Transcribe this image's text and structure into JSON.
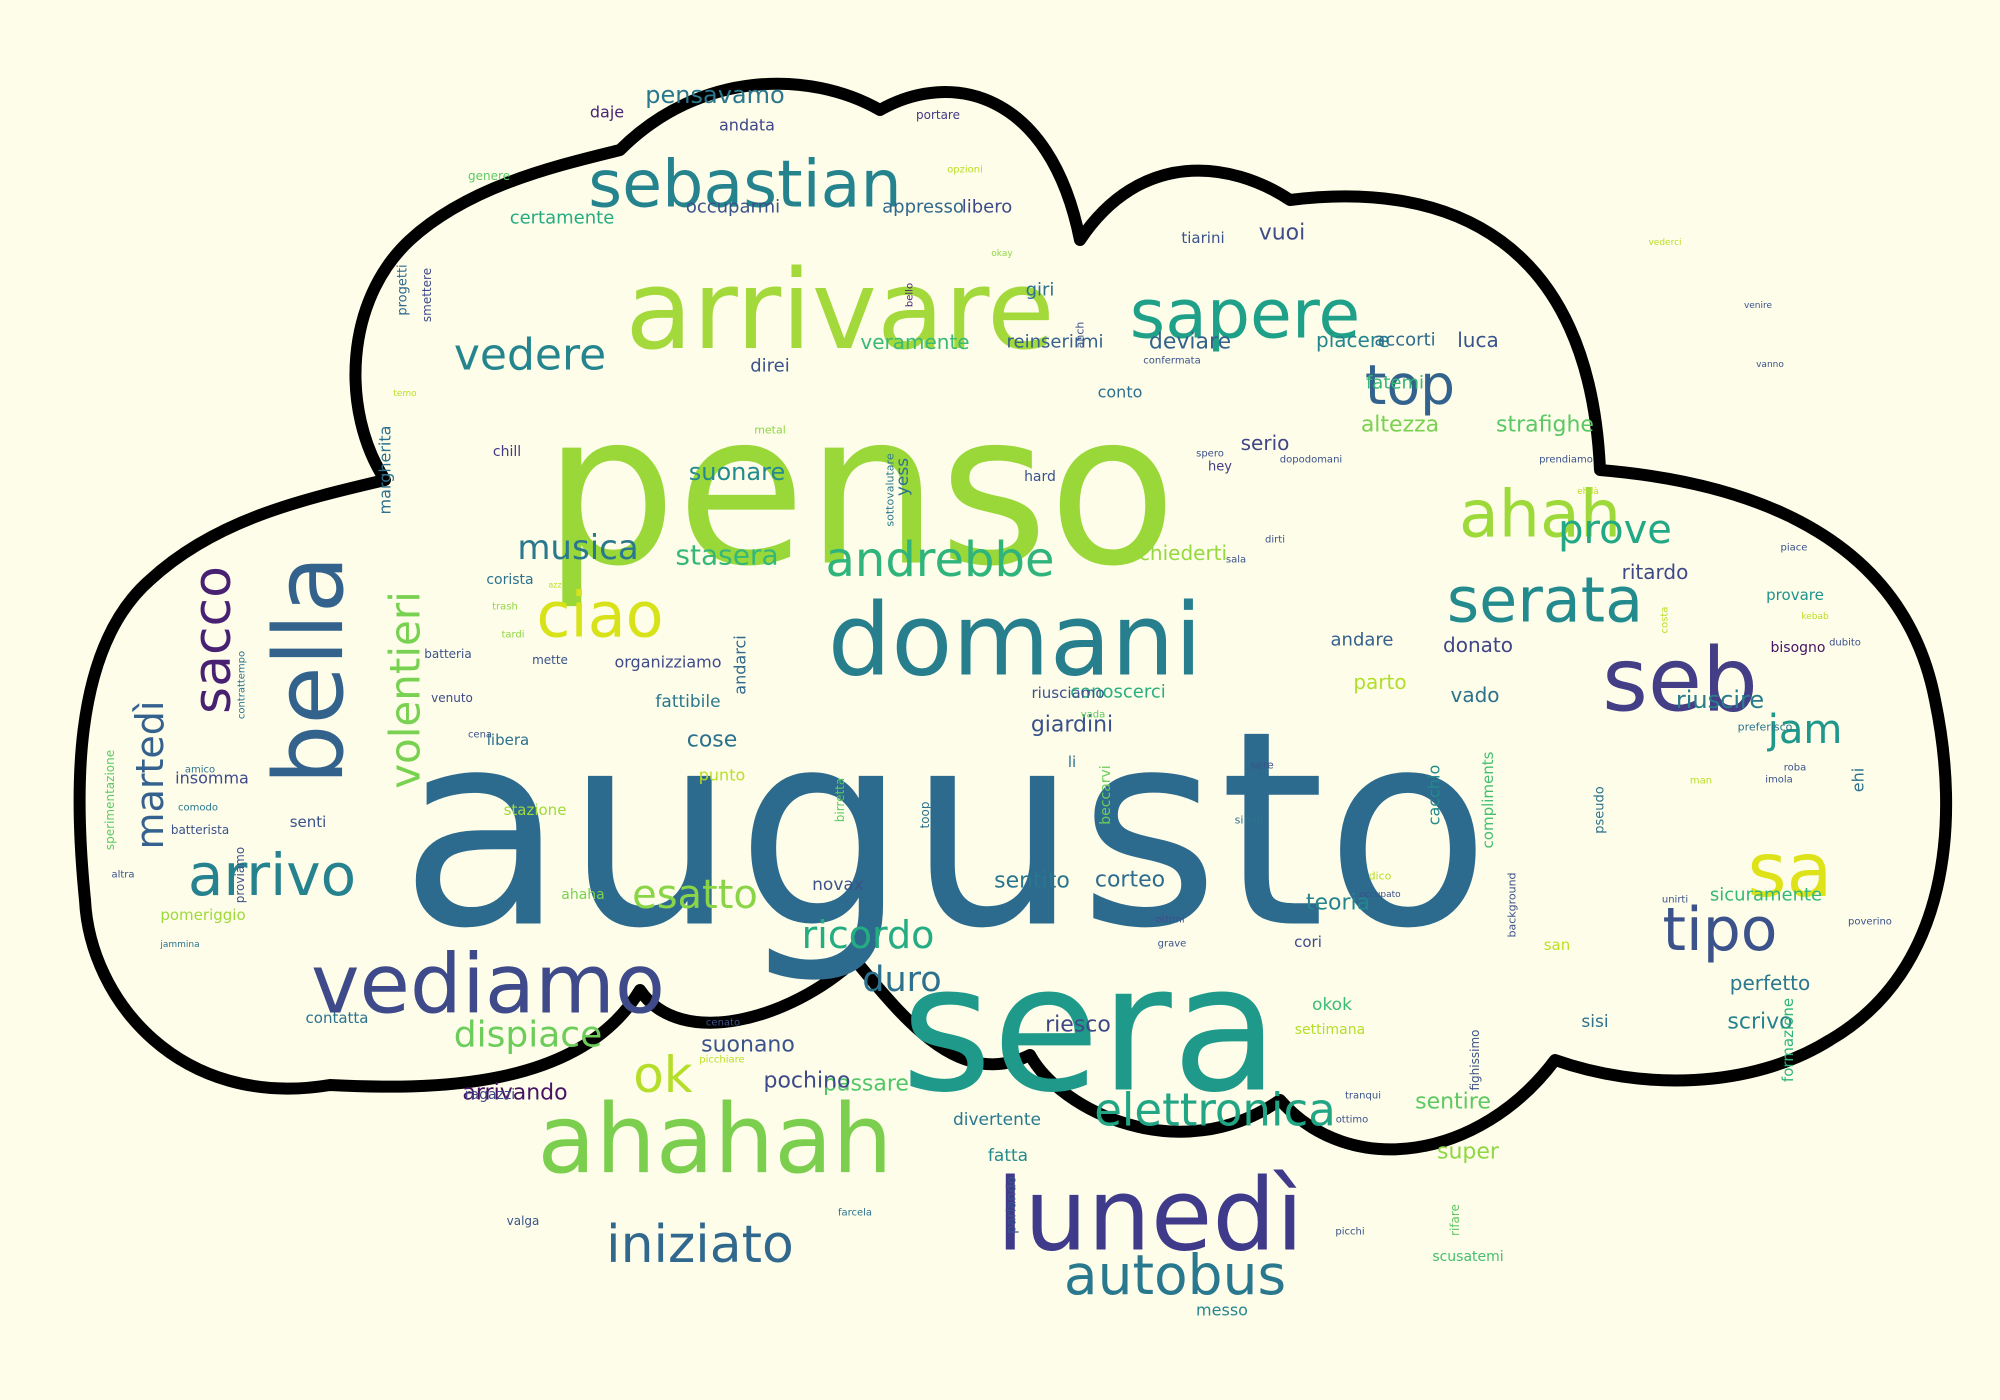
{
  "palette": {
    "background": "#fdfde9",
    "cloud_fill": "#fdfde9",
    "cloud_stroke": "#000000",
    "viridis": [
      "#440154",
      "#3b528b",
      "#2c728e",
      "#21918c",
      "#28ae80",
      "#5ec962",
      "#addc30",
      "#fde725"
    ]
  },
  "word_cloud": {
    "words": [
      {
        "text": "augusto",
        "color": "#2c6a8e"
      },
      {
        "text": "penso",
        "color": "#9ad83a"
      },
      {
        "text": "sera",
        "color": "#1f9a8a"
      },
      {
        "text": "domani",
        "color": "#277f8e"
      },
      {
        "text": "arrivare",
        "color": "#a3d93a"
      },
      {
        "text": "ahahah",
        "color": "#7ccf4e"
      },
      {
        "text": "lunedì",
        "color": "#3f3a8a"
      },
      {
        "text": "vediamo",
        "color": "#3e4a8a"
      },
      {
        "text": "seb",
        "color": "#433e85"
      },
      {
        "text": "bella",
        "color": "#33628d"
      },
      {
        "text": "sebastian",
        "color": "#25838e"
      },
      {
        "text": "sapere",
        "color": "#1fa088"
      },
      {
        "text": "sa",
        "color": "#dde318"
      },
      {
        "text": "ahah",
        "color": "#9ed93a"
      },
      {
        "text": "serata",
        "color": "#238a8d"
      },
      {
        "text": "ciao",
        "color": "#d8e219"
      },
      {
        "text": "andrebbe",
        "color": "#2fb47c"
      },
      {
        "text": "sacco",
        "color": "#482173"
      },
      {
        "text": "volentieri",
        "color": "#79d151"
      },
      {
        "text": "arrivo",
        "color": "#26828e"
      },
      {
        "text": "tipo",
        "color": "#3b528b"
      },
      {
        "text": "top",
        "color": "#33638d"
      },
      {
        "text": "iniziato",
        "color": "#31688e"
      },
      {
        "text": "autobus",
        "color": "#2a788e"
      },
      {
        "text": "elettronica",
        "color": "#21a585"
      },
      {
        "text": "vedere",
        "color": "#25858e"
      },
      {
        "text": "martedì",
        "color": "#34618d"
      },
      {
        "text": "esatto",
        "color": "#8ad547"
      },
      {
        "text": "prove",
        "color": "#22a884"
      },
      {
        "text": "jam",
        "color": "#1f988b"
      },
      {
        "text": "ok",
        "color": "#b5de2b"
      },
      {
        "text": "dispiace",
        "color": "#6ccd5a"
      },
      {
        "text": "ricordo",
        "color": "#25ac82"
      },
      {
        "text": "musica",
        "color": "#2a788e"
      },
      {
        "text": "duro",
        "color": "#2d718e"
      },
      {
        "text": "stasera",
        "color": "#35b779"
      },
      {
        "text": "pensavamo",
        "color": "#2a778e"
      },
      {
        "text": "riuscire",
        "color": "#287c8e"
      },
      {
        "text": "suonare",
        "color": "#238a8d"
      },
      {
        "text": "altezza",
        "color": "#7ad151"
      },
      {
        "text": "strafighe",
        "color": "#5ac864"
      },
      {
        "text": "deviare",
        "color": "#33638d"
      },
      {
        "text": "serio",
        "color": "#404688"
      },
      {
        "text": "vuoi",
        "color": "#3e4c8a"
      },
      {
        "text": "giardini",
        "color": "#3b518b"
      },
      {
        "text": "passare",
        "color": "#52c569"
      },
      {
        "text": "cose",
        "color": "#2c718e"
      },
      {
        "text": "arrivando",
        "color": "#471365"
      },
      {
        "text": "corteo",
        "color": "#2f6c8e"
      },
      {
        "text": "pochino",
        "color": "#3e4a89"
      },
      {
        "text": "sentito",
        "color": "#2a768e"
      },
      {
        "text": "teoria",
        "color": "#25858e"
      },
      {
        "text": "riesco",
        "color": "#3f4889"
      },
      {
        "text": "suonano",
        "color": "#3b528b"
      },
      {
        "text": "sentire",
        "color": "#5ec962"
      },
      {
        "text": "super",
        "color": "#8fd744"
      },
      {
        "text": "scrivo",
        "color": "#26828e"
      },
      {
        "text": "perfetto",
        "color": "#2a778e"
      },
      {
        "text": "sicuramente",
        "color": "#35b779"
      },
      {
        "text": "donato",
        "color": "#404588"
      },
      {
        "text": "parto",
        "color": "#b2dd2d"
      },
      {
        "text": "vado",
        "color": "#2c728e"
      },
      {
        "text": "andare",
        "color": "#34618d"
      },
      {
        "text": "ritardo",
        "color": "#3e4989"
      },
      {
        "text": "chiederti",
        "color": "#95d840"
      },
      {
        "text": "luca",
        "color": "#3a538b"
      },
      {
        "text": "piacere",
        "color": "#25858e"
      },
      {
        "text": "accorti",
        "color": "#2f6b8e"
      },
      {
        "text": "fatemi",
        "color": "#35b779"
      },
      {
        "text": "reinserirmi",
        "color": "#34618d"
      },
      {
        "text": "veramente",
        "color": "#3aba76"
      },
      {
        "text": "direi",
        "color": "#3b528b"
      },
      {
        "text": "giri",
        "color": "#2c728e"
      },
      {
        "text": "conto",
        "color": "#2e6f8e"
      },
      {
        "text": "certamente",
        "color": "#25ab82"
      },
      {
        "text": "occuparmi",
        "color": "#3b528b"
      },
      {
        "text": "appresso",
        "color": "#31688e"
      },
      {
        "text": "libero",
        "color": "#3e4a89"
      },
      {
        "text": "andata",
        "color": "#404688"
      },
      {
        "text": "daje",
        "color": "#482576"
      },
      {
        "text": "portare",
        "color": "#443a83"
      },
      {
        "text": "tiarini",
        "color": "#3b528b"
      },
      {
        "text": "conoscerci",
        "color": "#28ae80"
      },
      {
        "text": "fattibile",
        "color": "#2a788e"
      },
      {
        "text": "organizziamo",
        "color": "#3e4a89"
      },
      {
        "text": "insomma",
        "color": "#3e4a89"
      },
      {
        "text": "senti",
        "color": "#3b528b"
      },
      {
        "text": "punto",
        "color": "#bade28"
      },
      {
        "text": "stazione",
        "color": "#9fda3a"
      },
      {
        "text": "libera",
        "color": "#2d708e"
      },
      {
        "text": "novax",
        "color": "#3b528b"
      },
      {
        "text": "ahaha",
        "color": "#7ad151"
      },
      {
        "text": "ragazzi",
        "color": "#3e4989"
      },
      {
        "text": "divertente",
        "color": "#2a788e"
      },
      {
        "text": "fatta",
        "color": "#238a8d"
      },
      {
        "text": "okok",
        "color": "#3dbc74"
      },
      {
        "text": "settimana",
        "color": "#b5de2b"
      },
      {
        "text": "sisi",
        "color": "#2d718e"
      },
      {
        "text": "san",
        "color": "#bddf26"
      },
      {
        "text": "cori",
        "color": "#3e4a89"
      },
      {
        "text": "riusciamo",
        "color": "#3b528b"
      },
      {
        "text": "chill",
        "color": "#443983"
      },
      {
        "text": "hard",
        "color": "#3b528b"
      },
      {
        "text": "hey",
        "color": "#443a83"
      },
      {
        "text": "margherita",
        "color": "#2c728e"
      },
      {
        "text": "batteria",
        "color": "#3b528b"
      },
      {
        "text": "venuto",
        "color": "#3e4a89"
      },
      {
        "text": "contatta",
        "color": "#2c728e"
      },
      {
        "text": "pomeriggio",
        "color": "#9ed93a"
      },
      {
        "text": "provare",
        "color": "#20928c"
      },
      {
        "text": "bisogno",
        "color": "#471365"
      },
      {
        "text": "ehi",
        "color": "#2c728e"
      },
      {
        "text": "messo",
        "color": "#25858e"
      },
      {
        "text": "scusatemi",
        "color": "#44bf70"
      },
      {
        "text": "formazione",
        "color": "#2fb47c"
      },
      {
        "text": "compliments",
        "color": "#44bf70"
      },
      {
        "text": "cacchio",
        "color": "#238a8d"
      },
      {
        "text": "sottovalutare",
        "color": "#2a788e"
      },
      {
        "text": "yess",
        "color": "#2c728e"
      },
      {
        "text": "andarci",
        "color": "#31688e"
      },
      {
        "text": "beccarvi",
        "color": "#6ccd5a"
      },
      {
        "text": "toop",
        "color": "#2c728e"
      },
      {
        "text": "birretta",
        "color": "#5ec962"
      },
      {
        "text": "parlando",
        "color": "#3b528b"
      },
      {
        "text": "progetti",
        "color": "#31688e"
      },
      {
        "text": "smettere",
        "color": "#3e4a89"
      },
      {
        "text": "sperimentazione",
        "color": "#5ec962"
      },
      {
        "text": "fighissimo",
        "color": "#3b528b"
      },
      {
        "text": "background",
        "color": "#3b528b"
      },
      {
        "text": "pseudo",
        "color": "#2c728e"
      },
      {
        "text": "rifare",
        "color": "#5ec962"
      },
      {
        "text": "bello",
        "color": "#482576"
      },
      {
        "text": "anch",
        "color": "#3b528b"
      },
      {
        "text": "metal",
        "color": "#8fd744"
      },
      {
        "text": "corista",
        "color": "#2c728e"
      },
      {
        "text": "costa",
        "color": "#bade28"
      },
      {
        "text": "contrattempo",
        "color": "#2c728e"
      },
      {
        "text": "proviamo",
        "color": "#3b528b"
      },
      {
        "text": "amico",
        "color": "#2c728e"
      },
      {
        "text": "comodo",
        "color": "#2a788e"
      },
      {
        "text": "batterista",
        "color": "#3b528b"
      },
      {
        "text": "altra",
        "color": "#3b528b"
      },
      {
        "text": "jammina",
        "color": "#2c728e"
      },
      {
        "text": "trash",
        "color": "#8fd744"
      },
      {
        "text": "tardi",
        "color": "#8fd744"
      },
      {
        "text": "azz",
        "color": "#bade28"
      },
      {
        "text": "mette",
        "color": "#3b528b"
      },
      {
        "text": "cena",
        "color": "#3b528b"
      },
      {
        "text": "picchiare",
        "color": "#bade28"
      },
      {
        "text": "cenato",
        "color": "#3b528b"
      },
      {
        "text": "valga",
        "color": "#3b528b"
      },
      {
        "text": "farcela",
        "color": "#2c728e"
      },
      {
        "text": "sere",
        "color": "#3b528b"
      },
      {
        "text": "simili",
        "color": "#2c728e"
      },
      {
        "text": "vada",
        "color": "#5ec962"
      },
      {
        "text": "dico",
        "color": "#bade28"
      },
      {
        "text": "occupato",
        "color": "#3b528b"
      },
      {
        "text": "ottimi",
        "color": "#3b528b"
      },
      {
        "text": "grave",
        "color": "#3b528b"
      },
      {
        "text": "tranqui",
        "color": "#3b528b"
      },
      {
        "text": "ottimo",
        "color": "#3b528b"
      },
      {
        "text": "picchi",
        "color": "#3b528b"
      },
      {
        "text": "li",
        "color": "#2c728e"
      },
      {
        "text": "dirti",
        "color": "#3b528b"
      },
      {
        "text": "sala",
        "color": "#3b528b"
      },
      {
        "text": "spero",
        "color": "#3b528b"
      },
      {
        "text": "dopodomani",
        "color": "#3b528b"
      },
      {
        "text": "prendiamo",
        "color": "#3b528b"
      },
      {
        "text": "ehilà",
        "color": "#bade28"
      },
      {
        "text": "piace",
        "color": "#3b528b"
      },
      {
        "text": "kebab",
        "color": "#bade28"
      },
      {
        "text": "dubito",
        "color": "#3b528b"
      },
      {
        "text": "preferisco",
        "color": "#2c728e"
      },
      {
        "text": "roba",
        "color": "#3b528b"
      },
      {
        "text": "imola",
        "color": "#3b528b"
      },
      {
        "text": "man",
        "color": "#bade28"
      },
      {
        "text": "unirti",
        "color": "#3b528b"
      },
      {
        "text": "poverino",
        "color": "#3b528b"
      },
      {
        "text": "vanno",
        "color": "#3b528b"
      },
      {
        "text": "venire",
        "color": "#3b528b"
      },
      {
        "text": "vederci",
        "color": "#bade28"
      },
      {
        "text": "confermata",
        "color": "#3b528b"
      },
      {
        "text": "okay",
        "color": "#8fd744"
      },
      {
        "text": "genere",
        "color": "#5ec962"
      },
      {
        "text": "opzioni",
        "color": "#bade28"
      },
      {
        "text": "temo",
        "color": "#bade28"
      }
    ]
  }
}
